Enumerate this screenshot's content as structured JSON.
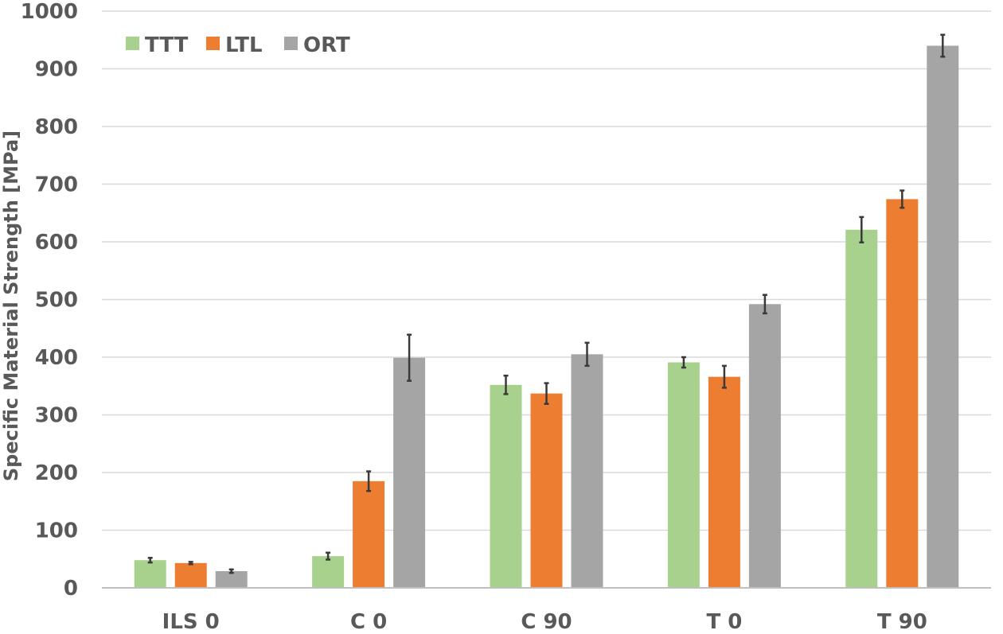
{
  "chart_data": {
    "type": "bar",
    "title": "",
    "xlabel": "",
    "ylabel": "Specific Material Strength [MPa]",
    "ylim": [
      0,
      1000
    ],
    "yticks": [
      0,
      100,
      200,
      300,
      400,
      500,
      600,
      700,
      800,
      900,
      1000
    ],
    "grid": true,
    "legend_position": "top-left",
    "categories": [
      "ILS 0",
      "C 0",
      "C 90",
      "T 0",
      "T 90"
    ],
    "series": [
      {
        "name": "TTT",
        "color": "#a9d18e",
        "values": [
          48,
          55,
          352,
          391,
          621
        ],
        "errors": [
          4,
          6,
          16,
          9,
          22
        ]
      },
      {
        "name": "LTL",
        "color": "#ed7d31",
        "values": [
          43,
          185,
          337,
          366,
          674
        ],
        "errors": [
          2,
          17,
          18,
          19,
          15
        ]
      },
      {
        "name": "ORT",
        "color": "#a5a5a5",
        "values": [
          29,
          399,
          405,
          492,
          940
        ],
        "errors": [
          3,
          40,
          20,
          16,
          19
        ]
      }
    ]
  }
}
